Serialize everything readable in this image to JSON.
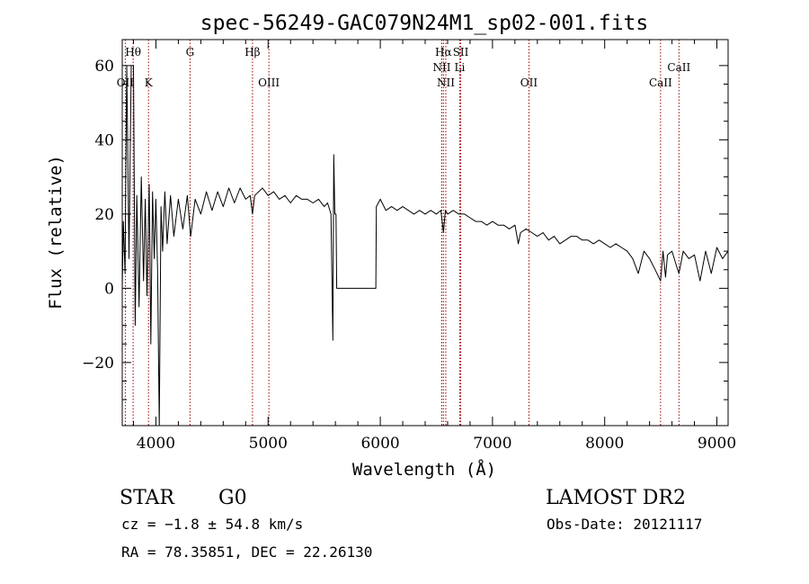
{
  "chart_data": {
    "type": "line",
    "title": "spec-56249-GAC079N24M1_sp02-001.fits",
    "xlabel": "Wavelength (Å)",
    "ylabel": "Flux (relative)",
    "xlim": [
      3700,
      9100
    ],
    "ylim": [
      -37,
      67
    ],
    "x_ticks": [
      4000,
      5000,
      6000,
      7000,
      8000,
      9000
    ],
    "x_tick_labels": [
      "4000",
      "5000",
      "6000",
      "7000",
      "8000",
      "9000"
    ],
    "y_ticks": [
      -20,
      0,
      20,
      40,
      60
    ],
    "y_tick_labels": [
      "−20",
      "0",
      "20",
      "40",
      "60"
    ],
    "grid": false,
    "series": [
      {
        "name": "flux",
        "color": "#000000",
        "points": [
          [
            3700,
            0
          ],
          [
            3710,
            18
          ],
          [
            3725,
            4
          ],
          [
            3740,
            60
          ],
          [
            3760,
            8
          ],
          [
            3780,
            60
          ],
          [
            3800,
            60
          ],
          [
            3815,
            -10
          ],
          [
            3830,
            25
          ],
          [
            3850,
            -5
          ],
          [
            3870,
            30
          ],
          [
            3890,
            2
          ],
          [
            3905,
            24
          ],
          [
            3920,
            -2
          ],
          [
            3940,
            28
          ],
          [
            3955,
            -15
          ],
          [
            3970,
            26
          ],
          [
            3985,
            8
          ],
          [
            4000,
            24
          ],
          [
            4015,
            5
          ],
          [
            4030,
            -37
          ],
          [
            4045,
            22
          ],
          [
            4060,
            10
          ],
          [
            4080,
            26
          ],
          [
            4100,
            12
          ],
          [
            4130,
            25
          ],
          [
            4160,
            14
          ],
          [
            4200,
            24
          ],
          [
            4240,
            16
          ],
          [
            4280,
            25
          ],
          [
            4310,
            14
          ],
          [
            4350,
            24
          ],
          [
            4400,
            20
          ],
          [
            4450,
            26
          ],
          [
            4500,
            21
          ],
          [
            4550,
            26
          ],
          [
            4600,
            22
          ],
          [
            4650,
            27
          ],
          [
            4700,
            23
          ],
          [
            4750,
            27
          ],
          [
            4800,
            24
          ],
          [
            4840,
            25
          ],
          [
            4861,
            20
          ],
          [
            4880,
            25
          ],
          [
            4950,
            27
          ],
          [
            5000,
            25
          ],
          [
            5050,
            26
          ],
          [
            5100,
            24
          ],
          [
            5150,
            25
          ],
          [
            5200,
            23
          ],
          [
            5250,
            25
          ],
          [
            5300,
            24
          ],
          [
            5350,
            24
          ],
          [
            5400,
            23
          ],
          [
            5450,
            24
          ],
          [
            5500,
            22
          ],
          [
            5530,
            23
          ],
          [
            5560,
            20
          ],
          [
            5577,
            -14
          ],
          [
            5585,
            36
          ],
          [
            5595,
            20
          ],
          [
            5605,
            20
          ],
          [
            5612,
            0
          ],
          [
            5960,
            0
          ],
          [
            5965,
            22
          ],
          [
            6000,
            24
          ],
          [
            6050,
            21
          ],
          [
            6100,
            22
          ],
          [
            6150,
            21
          ],
          [
            6200,
            22
          ],
          [
            6250,
            21
          ],
          [
            6300,
            20
          ],
          [
            6350,
            21
          ],
          [
            6400,
            20
          ],
          [
            6450,
            21
          ],
          [
            6500,
            20
          ],
          [
            6540,
            21
          ],
          [
            6563,
            15
          ],
          [
            6580,
            21
          ],
          [
            6600,
            20
          ],
          [
            6650,
            21
          ],
          [
            6700,
            20
          ],
          [
            6750,
            20
          ],
          [
            6800,
            19
          ],
          [
            6850,
            18
          ],
          [
            6900,
            18
          ],
          [
            6950,
            17
          ],
          [
            7000,
            18
          ],
          [
            7050,
            17
          ],
          [
            7100,
            17
          ],
          [
            7150,
            16
          ],
          [
            7200,
            17
          ],
          [
            7230,
            12
          ],
          [
            7250,
            15
          ],
          [
            7300,
            16
          ],
          [
            7350,
            15
          ],
          [
            7400,
            14
          ],
          [
            7450,
            15
          ],
          [
            7500,
            13
          ],
          [
            7550,
            14
          ],
          [
            7600,
            12
          ],
          [
            7650,
            13
          ],
          [
            7700,
            14
          ],
          [
            7750,
            14
          ],
          [
            7800,
            13
          ],
          [
            7850,
            13
          ],
          [
            7900,
            12
          ],
          [
            7950,
            13
          ],
          [
            8000,
            12
          ],
          [
            8050,
            11
          ],
          [
            8100,
            12
          ],
          [
            8150,
            11
          ],
          [
            8200,
            10
          ],
          [
            8250,
            8
          ],
          [
            8300,
            4
          ],
          [
            8350,
            10
          ],
          [
            8400,
            8
          ],
          [
            8450,
            5
          ],
          [
            8498,
            2
          ],
          [
            8520,
            10
          ],
          [
            8542,
            3
          ],
          [
            8560,
            9
          ],
          [
            8600,
            10
          ],
          [
            8640,
            6
          ],
          [
            8662,
            4
          ],
          [
            8700,
            10
          ],
          [
            8750,
            8
          ],
          [
            8800,
            9
          ],
          [
            8850,
            2
          ],
          [
            8900,
            10
          ],
          [
            8950,
            4
          ],
          [
            9000,
            11
          ],
          [
            9050,
            8
          ],
          [
            9100,
            10
          ]
        ]
      }
    ],
    "lines": [
      {
        "label": "Hθ",
        "x": 3797,
        "row": 1
      },
      {
        "label": "OII",
        "x": 3727,
        "row": 2
      },
      {
        "label": "K",
        "x": 3934,
        "row": 2
      },
      {
        "label": "G",
        "x": 4304,
        "row": 1
      },
      {
        "label": "Hβ",
        "x": 4861,
        "row": 1
      },
      {
        "label": "OIII",
        "x": 5007,
        "row": 2
      },
      {
        "label": "Hα",
        "x": 6563,
        "row": 1
      },
      {
        "label": "SII",
        "x": 6717,
        "row": 1
      },
      {
        "label": "NII",
        "x": 6548,
        "row": 2
      },
      {
        "label": "Li",
        "x": 6708,
        "row": 2
      },
      {
        "label": "NII",
        "x": 6584,
        "row": 3
      },
      {
        "label": "OII",
        "x": 7325,
        "row": 2
      },
      {
        "label": "CaII",
        "x": 8498,
        "row": 3
      },
      {
        "label": "CaII",
        "x": 8662,
        "row": 2
      }
    ],
    "line_color": "#a00000"
  },
  "footer": {
    "class": "STAR",
    "subclass": "G0",
    "survey": "LAMOST DR2",
    "cz": "cz = −1.8 ± 54.8 km/s",
    "obs_date": "Obs-Date: 20121117",
    "coords": "RA =  78.35851, DEC =  22.26130"
  }
}
